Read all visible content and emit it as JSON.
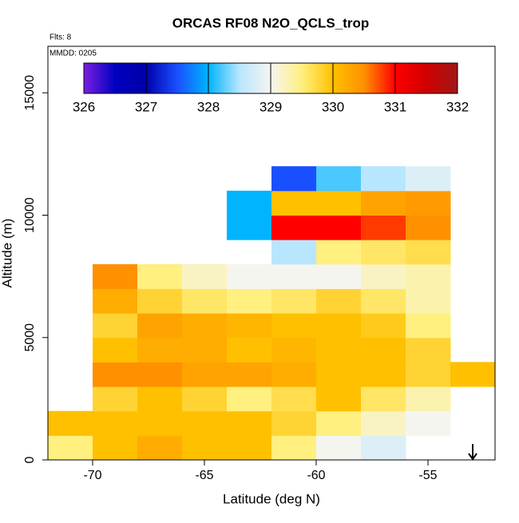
{
  "chart_data": {
    "type": "heatmap",
    "title": "ORCAS RF08 N2O_QCLS_trop",
    "annotations": [
      "Flts: 8",
      "MMDD: 0205"
    ],
    "x_label": "Latitude (deg N)",
    "y_label": "Altitude (m)",
    "xlim": [
      -72,
      -52
    ],
    "xticks": [
      -70,
      -65,
      -60,
      -55
    ],
    "ylim": [
      0,
      16900
    ],
    "yticks": [
      0,
      5000,
      10000,
      15000
    ],
    "x_bins": [
      -72,
      -70,
      -68,
      -66,
      -64,
      -62,
      -60,
      -58,
      -56,
      -54,
      -52
    ],
    "y_bins": [
      0,
      1000,
      2000,
      3000,
      4000,
      5000,
      6000,
      7000,
      8000,
      9000,
      10000,
      11000,
      12000
    ],
    "z": [
      [
        329.5,
        330,
        330.2,
        330,
        330,
        329.5,
        329,
        328.8,
        null,
        null
      ],
      [
        330,
        330,
        330,
        330,
        330,
        329.8,
        329.5,
        329.2,
        329,
        null
      ],
      [
        null,
        329.8,
        330,
        329.8,
        329.5,
        329.7,
        330,
        329.6,
        329.3,
        null
      ],
      [
        null,
        330.5,
        330.5,
        330.3,
        330.3,
        330.2,
        330,
        330,
        329.8,
        330
      ],
      [
        null,
        330,
        330.2,
        330.2,
        330,
        330.1,
        330,
        330,
        329.8,
        null
      ],
      [
        null,
        329.8,
        330.3,
        330.2,
        330.1,
        330,
        330,
        329.9,
        329.5,
        null
      ],
      [
        null,
        330.2,
        329.8,
        329.6,
        329.5,
        329.6,
        329.8,
        329.6,
        329.3,
        null
      ],
      [
        null,
        330.5,
        329.5,
        329.2,
        329,
        329,
        329,
        329.2,
        329.3,
        null
      ],
      [
        null,
        null,
        null,
        null,
        null,
        328.5,
        329.5,
        329.6,
        329.7,
        null
      ],
      [
        null,
        null,
        null,
        null,
        328,
        331,
        331,
        330.8,
        330.5,
        null
      ],
      [
        null,
        null,
        null,
        null,
        328,
        330,
        330,
        330.3,
        330.4,
        null
      ],
      [
        null,
        null,
        null,
        null,
        null,
        327.5,
        328.2,
        328.5,
        328.8,
        null
      ]
    ],
    "zlim": [
      326,
      332
    ],
    "zticks": [
      326,
      327,
      328,
      329,
      330,
      331,
      332
    ],
    "colorscale": [
      "#7b1fe0",
      "#0000c0",
      "#0000a8",
      "#1a4fff",
      "#00b4ff",
      "#b8e6ff",
      "#f5f5f0",
      "#fff080",
      "#ffc000",
      "#ff9000",
      "#ff0000",
      "#d00000",
      "#a01818"
    ],
    "arrow_lat": -53
  }
}
